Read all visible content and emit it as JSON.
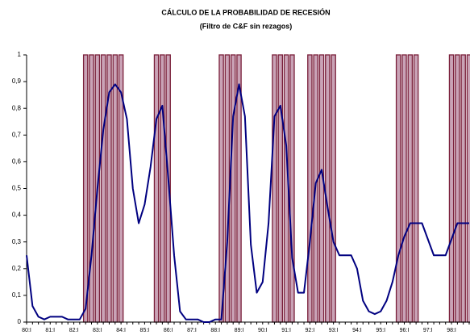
{
  "chart_data": {
    "type": "line",
    "title": "CÁLCULO DE LA PROBABILIDAD DE RECESIÓN",
    "subtitle": "(Filtro de C&F sin rezagos)",
    "categories": [
      "80:I",
      null,
      null,
      null,
      "81:I",
      null,
      null,
      null,
      "82:I",
      null,
      null,
      null,
      "83:I",
      null,
      null,
      null,
      "84:I",
      null,
      null,
      null,
      "85:I",
      null,
      null,
      null,
      "86:I",
      null,
      null,
      null,
      "87:I",
      null,
      null,
      null,
      "88:I",
      null,
      null,
      null,
      "89:I",
      null,
      null,
      null,
      "90:I",
      null,
      null,
      null,
      "91:I",
      null,
      null,
      null,
      "92:I",
      null,
      null,
      null,
      "93:I",
      null,
      null,
      null,
      "94:I",
      null,
      null,
      null,
      "95:I",
      null,
      null,
      null,
      "96:I",
      null,
      null,
      null,
      "97:I",
      null,
      null,
      null,
      "98:I",
      null,
      null,
      null
    ],
    "series": [
      {
        "color": "#000080",
        "values": [
          0.25,
          0.06,
          0.02,
          0.01,
          0.02,
          0.02,
          0.02,
          0.01,
          0.01,
          0.01,
          0.05,
          0.25,
          0.5,
          0.72,
          0.86,
          0.89,
          0.86,
          0.76,
          0.5,
          0.37,
          0.44,
          0.58,
          0.76,
          0.81,
          0.54,
          0.25,
          0.04,
          0.01,
          0.01,
          0.01,
          0,
          0,
          0.01,
          0.01,
          0.3,
          0.77,
          0.89,
          0.77,
          0.29,
          0.11,
          0.15,
          0.37,
          0.77,
          0.81,
          0.66,
          0.24,
          0.11,
          0.11,
          0.3,
          0.52,
          0.57,
          0.43,
          0.3,
          0.25,
          0.25,
          0.25,
          0.2,
          0.08,
          0.04,
          0.03,
          0.04,
          0.08,
          0.15,
          0.25,
          0.32,
          0.37,
          0.37,
          0.37,
          0.31,
          0.25,
          0.25,
          0.25,
          0.31,
          0.37,
          0.37,
          0.37
        ]
      },
      {
        "type": "bar",
        "color": "#7a1f3a",
        "values": [
          0,
          0,
          0,
          0,
          0,
          0,
          0,
          0,
          0,
          0,
          1,
          1,
          1,
          1,
          1,
          1,
          1,
          0,
          0,
          0,
          0,
          0,
          1,
          1,
          1,
          0,
          0,
          0,
          0,
          0,
          0,
          0,
          0,
          1,
          1,
          1,
          1,
          0,
          0,
          0,
          0,
          0,
          1,
          1,
          1,
          1,
          0,
          0,
          1,
          1,
          1,
          1,
          1,
          0,
          0,
          0,
          0,
          0,
          0,
          0,
          0,
          0,
          0,
          1,
          1,
          1,
          1,
          0,
          0,
          0,
          0,
          0,
          1,
          1,
          1,
          1
        ]
      }
    ],
    "ylim": [
      0,
      1
    ],
    "yticks": [
      0,
      {
        "value": 0.1,
        "label": "0,1"
      },
      {
        "value": 0.2,
        "label": "0,2"
      },
      {
        "value": 0.3,
        "label": "0,3"
      },
      {
        "value": 0.4,
        "label": "0,4"
      },
      {
        "value": 0.5,
        "label": "0,5"
      },
      {
        "value": 0.6,
        "label": "0,6"
      },
      {
        "value": 0.7,
        "label": "0,7"
      },
      {
        "value": 0.8,
        "label": "0,8"
      },
      {
        "value": 0.9,
        "label": "0,9"
      },
      1
    ]
  }
}
